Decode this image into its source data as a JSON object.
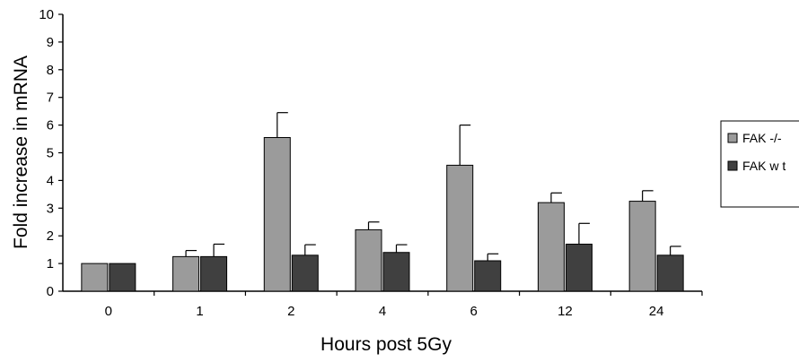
{
  "chart_data": {
    "type": "bar",
    "xlabel": "Hours post 5Gy",
    "ylabel": "Fold increase in mRNA",
    "ylim": [
      0,
      10
    ],
    "yticks": [
      "0",
      "1",
      "2",
      "3",
      "4",
      "5",
      "6",
      "7",
      "8",
      "9",
      "10"
    ],
    "categories": [
      "0",
      "1",
      "2",
      "4",
      "6",
      "12",
      "24"
    ],
    "grid": false,
    "legend_position": "right",
    "series": [
      {
        "name": "FAK -/-",
        "color": "#9b9b9b",
        "values": [
          1.0,
          1.25,
          5.55,
          2.22,
          4.55,
          3.2,
          3.25
        ],
        "error": [
          0,
          0.22,
          0.9,
          0.28,
          1.45,
          0.35,
          0.38
        ]
      },
      {
        "name": "FAK w t",
        "color": "#404040",
        "values": [
          1.0,
          1.25,
          1.3,
          1.4,
          1.1,
          1.7,
          1.3
        ],
        "error": [
          0,
          0.45,
          0.38,
          0.28,
          0.25,
          0.75,
          0.32
        ]
      }
    ]
  }
}
